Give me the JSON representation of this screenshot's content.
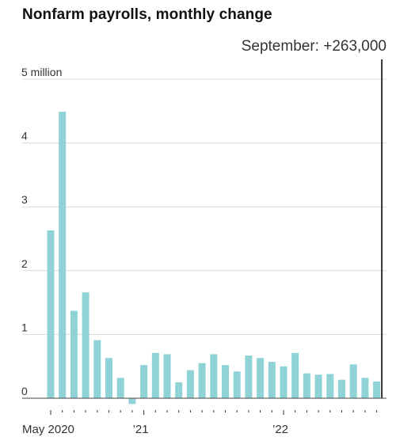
{
  "chart_data": {
    "type": "bar",
    "title": "Nonfarm payrolls, monthly change",
    "annotation": "September: +263,000",
    "unit": "million",
    "ylim": [
      0,
      5
    ],
    "y_ticks": [
      {
        "value": 5,
        "label": "5 million"
      },
      {
        "value": 4,
        "label": "4"
      },
      {
        "value": 3,
        "label": "3"
      },
      {
        "value": 2,
        "label": "2"
      },
      {
        "value": 1,
        "label": "1"
      },
      {
        "value": 0,
        "label": "0"
      }
    ],
    "x_tick_labels": [
      {
        "index": 0,
        "label": "May 2020"
      },
      {
        "index": 8,
        "label": "’21"
      },
      {
        "index": 20,
        "label": "’22"
      }
    ],
    "categories": [
      "May 2020",
      "Jun 2020",
      "Jul 2020",
      "Aug 2020",
      "Sep 2020",
      "Oct 2020",
      "Nov 2020",
      "Dec 2020",
      "Jan 2021",
      "Feb 2021",
      "Mar 2021",
      "Apr 2021",
      "May 2021",
      "Jun 2021",
      "Jul 2021",
      "Aug 2021",
      "Sep 2021",
      "Oct 2021",
      "Nov 2021",
      "Dec 2021",
      "Jan 2022",
      "Feb 2022",
      "Mar 2022",
      "Apr 2022",
      "May 2022",
      "Jun 2022",
      "Jul 2022",
      "Aug 2022",
      "Sep 2022"
    ],
    "values": [
      2.63,
      4.49,
      1.37,
      1.66,
      0.91,
      0.63,
      0.32,
      -0.09,
      0.52,
      0.71,
      0.69,
      0.25,
      0.44,
      0.55,
      0.69,
      0.52,
      0.42,
      0.67,
      0.63,
      0.57,
      0.5,
      0.71,
      0.39,
      0.37,
      0.38,
      0.29,
      0.53,
      0.32,
      0.263
    ],
    "highlight_index": 28,
    "bar_color": "#8fd3d6",
    "grid": true
  }
}
